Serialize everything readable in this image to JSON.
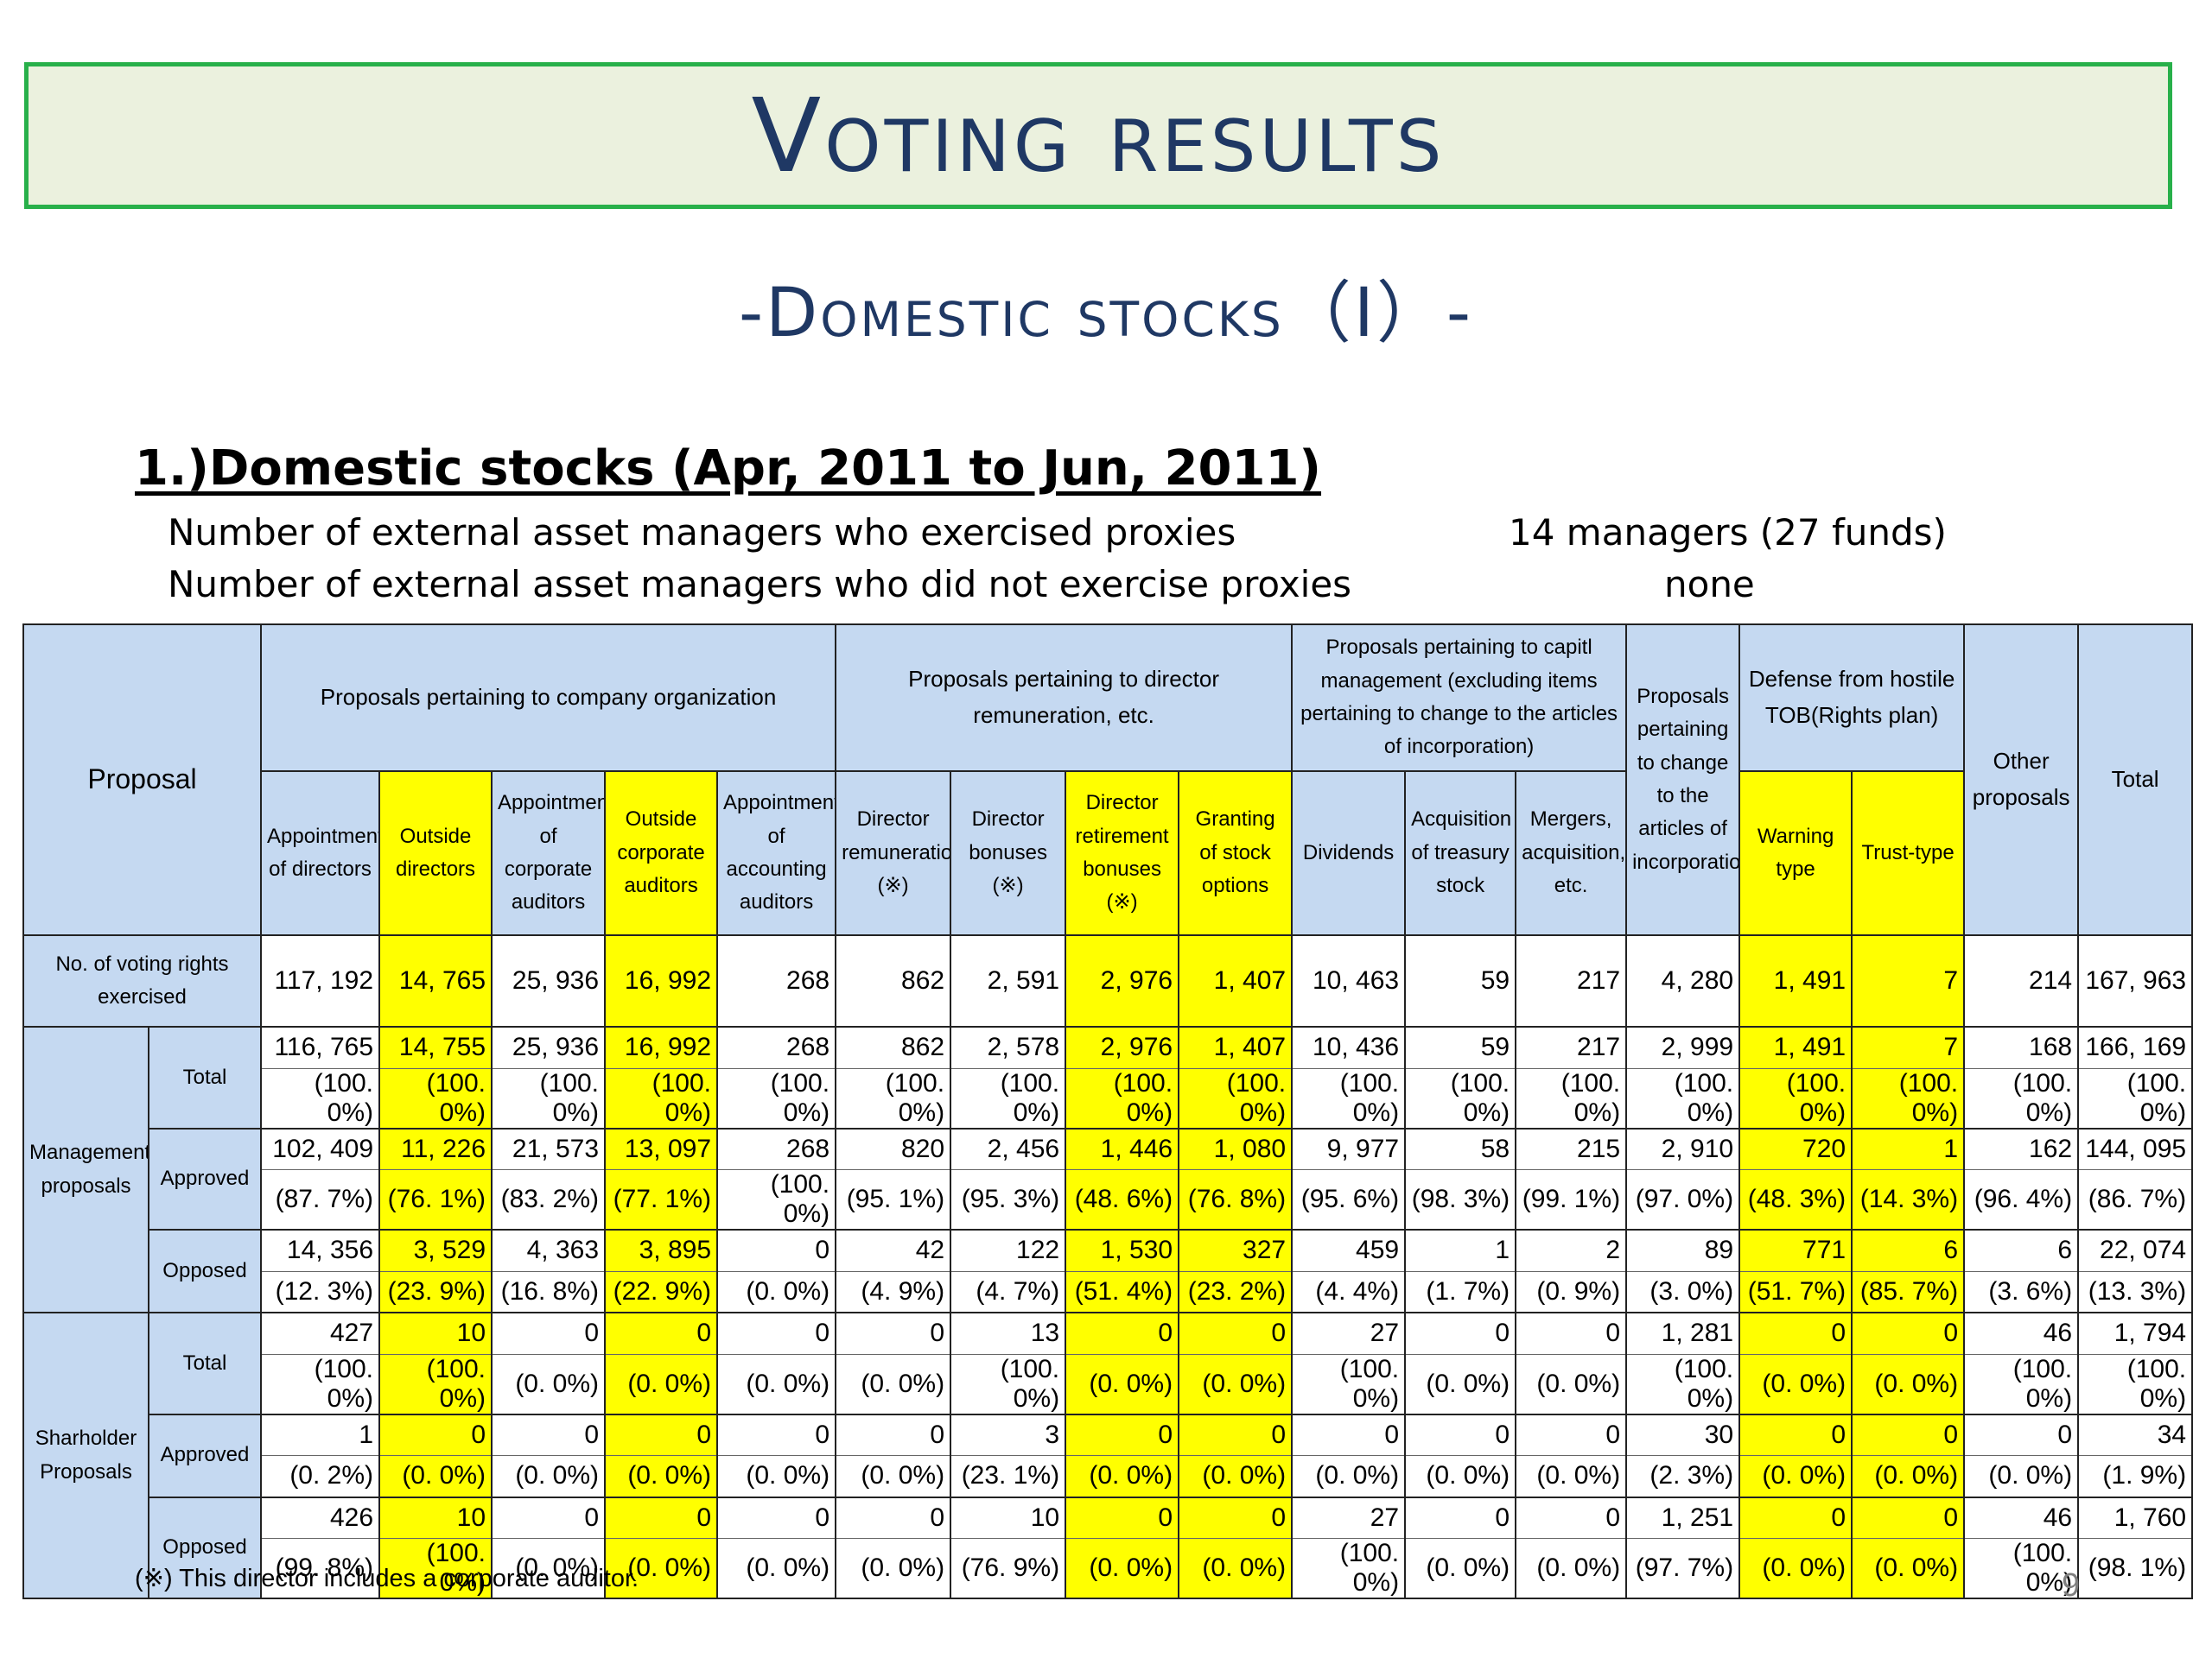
{
  "title": "Voting results",
  "subtitle": "-Domestic stocks（Ⅰ）-",
  "section_heading": "1.)Domestic stocks (Apr, 2011 to Jun, 2011)",
  "info": [
    {
      "label": "Number of external asset managers who exercised proxies",
      "value": "14 managers (27 funds)"
    },
    {
      "label": "Number of external asset managers who did not exercise proxies",
      "value": "none"
    }
  ],
  "highlight_color": "#ffff00",
  "header_color": "#c5d9f1",
  "table": {
    "corner": "Proposal",
    "groups": {
      "organization": "Proposals pertaining to company organization",
      "remuneration": "Proposals pertaining to director remuneration, etc.",
      "capital": "Proposals pertaining to capitl management (excluding items pertaining to change to the articles of incorporation)",
      "articles": "Proposals pertaining to change to the articles of incorporation",
      "defense": "Defense from hostile TOB(Rights plan)",
      "other": "Other proposals",
      "total": "Total"
    },
    "columns": [
      {
        "label": "Appointment of directors"
      },
      {
        "label": "Outside directors"
      },
      {
        "label": "Appointment of corporate auditors"
      },
      {
        "label": "Outside corporate auditors"
      },
      {
        "label": "Appointment of accounting auditors"
      },
      {
        "label": "Director remuneration (※)"
      },
      {
        "label": "Director bonuses (※)"
      },
      {
        "label": "Director retirement bonuses (※)"
      },
      {
        "label": "Granting of stock options"
      },
      {
        "label": "Dividends"
      },
      {
        "label": "Acquisition of treasury stock"
      },
      {
        "label": "Mergers, acquisition, etc."
      },
      {
        "label": "Warning type"
      },
      {
        "label": "Trust-type"
      }
    ],
    "voting_rights": {
      "label": "No. of voting rights exercised",
      "values": [
        "117, 192",
        "14, 765",
        "25, 936",
        "16, 992",
        "268",
        "862",
        "2, 591",
        "2, 976",
        "1, 407",
        "10, 463",
        "59",
        "217",
        "4, 280",
        "1, 491",
        "7",
        "214",
        "167, 963"
      ]
    },
    "sections": [
      {
        "label": "Management proposals",
        "rows": [
          {
            "label": "Total",
            "values": [
              "116, 765",
              "14, 755",
              "25, 936",
              "16, 992",
              "268",
              "862",
              "2, 578",
              "2, 976",
              "1, 407",
              "10, 436",
              "59",
              "217",
              "2, 999",
              "1, 491",
              "7",
              "168",
              "166, 169"
            ],
            "pcts": [
              "(100. 0%)",
              "(100. 0%)",
              "(100. 0%)",
              "(100. 0%)",
              "(100. 0%)",
              "(100. 0%)",
              "(100. 0%)",
              "(100. 0%)",
              "(100. 0%)",
              "(100. 0%)",
              "(100. 0%)",
              "(100. 0%)",
              "(100. 0%)",
              "(100. 0%)",
              "(100. 0%)",
              "(100. 0%)",
              "(100. 0%)"
            ]
          },
          {
            "label": "Approved",
            "values": [
              "102, 409",
              "11, 226",
              "21, 573",
              "13, 097",
              "268",
              "820",
              "2, 456",
              "1, 446",
              "1, 080",
              "9, 977",
              "58",
              "215",
              "2, 910",
              "720",
              "1",
              "162",
              "144, 095"
            ],
            "pcts": [
              "(87. 7%)",
              "(76. 1%)",
              "(83. 2%)",
              "(77. 1%)",
              "(100. 0%)",
              "(95. 1%)",
              "(95. 3%)",
              "(48. 6%)",
              "(76. 8%)",
              "(95. 6%)",
              "(98. 3%)",
              "(99. 1%)",
              "(97. 0%)",
              "(48. 3%)",
              "(14. 3%)",
              "(96. 4%)",
              "(86. 7%)"
            ]
          },
          {
            "label": "Opposed",
            "values": [
              "14, 356",
              "3, 529",
              "4, 363",
              "3, 895",
              "0",
              "42",
              "122",
              "1, 530",
              "327",
              "459",
              "1",
              "2",
              "89",
              "771",
              "6",
              "6",
              "22, 074"
            ],
            "pcts": [
              "(12. 3%)",
              "(23. 9%)",
              "(16. 8%)",
              "(22. 9%)",
              "(0. 0%)",
              "(4. 9%)",
              "(4. 7%)",
              "(51. 4%)",
              "(23. 2%)",
              "(4. 4%)",
              "(1. 7%)",
              "(0. 9%)",
              "(3. 0%)",
              "(51. 7%)",
              "(85. 7%)",
              "(3. 6%)",
              "(13. 3%)"
            ]
          }
        ]
      },
      {
        "label": "Sharholder Proposals",
        "rows": [
          {
            "label": "Total",
            "values": [
              "427",
              "10",
              "0",
              "0",
              "0",
              "0",
              "13",
              "0",
              "0",
              "27",
              "0",
              "0",
              "1, 281",
              "0",
              "0",
              "46",
              "1, 794"
            ],
            "pcts": [
              "(100. 0%)",
              "(100. 0%)",
              "(0. 0%)",
              "(0. 0%)",
              "(0. 0%)",
              "(0. 0%)",
              "(100. 0%)",
              "(0. 0%)",
              "(0. 0%)",
              "(100. 0%)",
              "(0. 0%)",
              "(0. 0%)",
              "(100. 0%)",
              "(0. 0%)",
              "(0. 0%)",
              "(100. 0%)",
              "(100. 0%)"
            ]
          },
          {
            "label": "Approved",
            "values": [
              "1",
              "0",
              "0",
              "0",
              "0",
              "0",
              "3",
              "0",
              "0",
              "0",
              "0",
              "0",
              "30",
              "0",
              "0",
              "0",
              "34"
            ],
            "pcts": [
              "(0. 2%)",
              "(0. 0%)",
              "(0. 0%)",
              "(0. 0%)",
              "(0. 0%)",
              "(0. 0%)",
              "(23. 1%)",
              "(0. 0%)",
              "(0. 0%)",
              "(0. 0%)",
              "(0. 0%)",
              "(0. 0%)",
              "(2. 3%)",
              "(0. 0%)",
              "(0. 0%)",
              "(0. 0%)",
              "(1. 9%)"
            ]
          },
          {
            "label": "Opposed",
            "values": [
              "426",
              "10",
              "0",
              "0",
              "0",
              "0",
              "10",
              "0",
              "0",
              "27",
              "0",
              "0",
              "1, 251",
              "0",
              "0",
              "46",
              "1, 760"
            ],
            "pcts": [
              "(99. 8%)",
              "(100. 0%)",
              "(0. 0%)",
              "(0. 0%)",
              "(0. 0%)",
              "(0. 0%)",
              "(76. 9%)",
              "(0. 0%)",
              "(0. 0%)",
              "(100. 0%)",
              "(0. 0%)",
              "(0. 0%)",
              "(97. 7%)",
              "(0. 0%)",
              "(0. 0%)",
              "(100. 0%)",
              "(98. 1%)"
            ]
          }
        ]
      }
    ]
  },
  "footnote": "(※) This director includes a corporate auditor.",
  "page_number": "9"
}
